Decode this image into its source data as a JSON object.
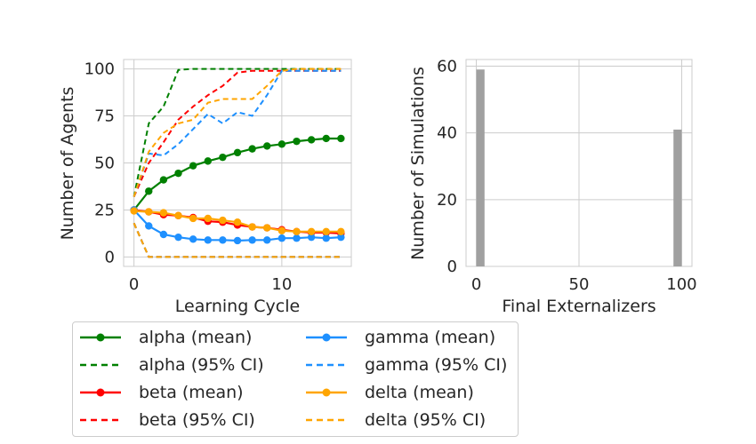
{
  "chart_data": [
    {
      "type": "line",
      "xlabel": "Learning Cycle",
      "ylabel": "Number of Agents",
      "xlim": [
        -0.7,
        14.7
      ],
      "ylim": [
        -5,
        105
      ],
      "xticks": [
        0,
        10
      ],
      "yticks": [
        0,
        25,
        50,
        75,
        100
      ],
      "grid": true,
      "x": [
        0,
        1,
        2,
        3,
        4,
        5,
        6,
        7,
        8,
        9,
        10,
        11,
        12,
        13,
        14
      ],
      "series": [
        {
          "name": "alpha (mean)",
          "color": "#008000",
          "style": "solid-marker",
          "values": [
            25,
            35,
            41,
            44.5,
            48.5,
            51,
            53,
            55.5,
            57.5,
            59,
            60,
            61.5,
            62.3,
            63,
            63
          ]
        },
        {
          "name": "alpha (95% CI)",
          "color": "#008000",
          "style": "dashed",
          "lower": [
            18,
            0,
            0,
            0,
            0,
            0,
            0,
            0,
            0,
            0,
            0,
            0,
            0,
            0,
            0
          ],
          "upper": [
            32,
            71,
            80,
            99.5,
            100,
            100,
            100,
            100,
            100,
            100,
            100,
            100,
            100,
            100,
            100
          ]
        },
        {
          "name": "beta (mean)",
          "color": "#ff0000",
          "style": "solid-marker",
          "values": [
            25,
            24,
            22.5,
            22,
            21,
            19,
            18.5,
            17,
            16,
            15.5,
            14.5,
            13.5,
            13,
            13,
            12.5
          ]
        },
        {
          "name": "beta (95% CI)",
          "color": "#ff0000",
          "style": "dashed",
          "lower": [
            18,
            0,
            0,
            0,
            0,
            0,
            0,
            0,
            0,
            0,
            0,
            0,
            0,
            0,
            0
          ],
          "upper": [
            32,
            50,
            61,
            73,
            80,
            86,
            91,
            98,
            99,
            99,
            99,
            99,
            99,
            99,
            99
          ]
        },
        {
          "name": "gamma (mean)",
          "color": "#1e90ff",
          "style": "solid-marker",
          "values": [
            25,
            16.5,
            12,
            10.5,
            9.5,
            9,
            9,
            8.7,
            9,
            9,
            10,
            10,
            10.5,
            10,
            10.5
          ]
        },
        {
          "name": "gamma (95% CI)",
          "color": "#1e90ff",
          "style": "dashed",
          "lower": [
            18,
            0,
            0,
            0,
            0,
            0,
            0,
            0,
            0,
            0,
            0,
            0,
            0,
            0,
            0
          ],
          "upper": [
            32,
            55,
            54,
            60,
            68,
            76,
            71,
            77,
            75,
            86,
            99,
            99,
            99,
            99,
            99
          ]
        },
        {
          "name": "delta (mean)",
          "color": "#ffa500",
          "style": "solid-marker",
          "values": [
            24.5,
            24,
            23.5,
            22,
            20.5,
            20.5,
            19.5,
            18.5,
            16,
            15.5,
            14,
            13.5,
            13.5,
            13.5,
            13.5
          ]
        },
        {
          "name": "delta (95% CI)",
          "color": "#ffa500",
          "style": "dashed",
          "lower": [
            18,
            0,
            0,
            0,
            0,
            0,
            0,
            0,
            0,
            0,
            0,
            0,
            0,
            0,
            0
          ],
          "upper": [
            32,
            56,
            66,
            71,
            73,
            82,
            84,
            84,
            84,
            91,
            99,
            100,
            100,
            100,
            100
          ]
        }
      ]
    },
    {
      "type": "bar",
      "xlabel": "Final Externalizers",
      "ylabel": "Number of Simulations",
      "xlim": [
        -5,
        105
      ],
      "ylim": [
        0,
        62
      ],
      "xticks": [
        0,
        50,
        100
      ],
      "yticks": [
        0,
        20,
        40,
        60
      ],
      "grid": true,
      "color": "#a0a0a0",
      "bins": [
        {
          "x0": 0,
          "x1": 4,
          "value": 59
        },
        {
          "x0": 96,
          "x1": 100,
          "value": 41
        }
      ]
    }
  ],
  "legend": {
    "placement": "below",
    "entries": [
      {
        "label": "alpha (mean)",
        "color": "#008000",
        "style": "solid-marker"
      },
      {
        "label": "alpha (95% CI)",
        "color": "#008000",
        "style": "dashed"
      },
      {
        "label": "beta (mean)",
        "color": "#ff0000",
        "style": "solid-marker"
      },
      {
        "label": "beta (95% CI)",
        "color": "#ff0000",
        "style": "dashed"
      },
      {
        "label": "gamma (mean)",
        "color": "#1e90ff",
        "style": "solid-marker"
      },
      {
        "label": "gamma (95% CI)",
        "color": "#1e90ff",
        "style": "dashed"
      },
      {
        "label": "delta (mean)",
        "color": "#ffa500",
        "style": "solid-marker"
      },
      {
        "label": "delta (95% CI)",
        "color": "#ffa500",
        "style": "dashed"
      }
    ]
  }
}
